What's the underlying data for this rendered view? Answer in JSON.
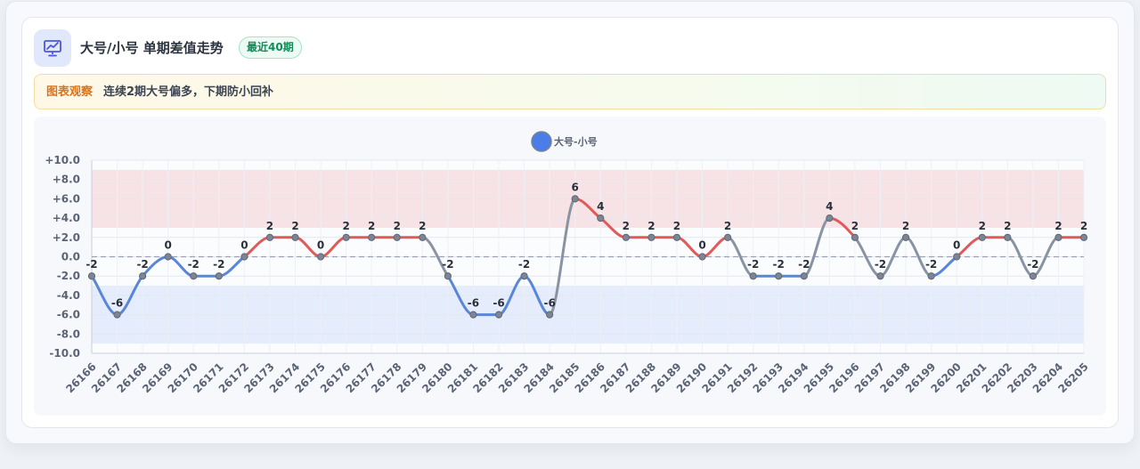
{
  "header": {
    "title": "大号/小号 单期差值走势",
    "badge": "最近40期",
    "icon": "chart-presentation-icon"
  },
  "notice": {
    "label": "图表观察",
    "text": "连续2期大号偏多，下期防小回补"
  },
  "colors": {
    "positive": "#e05a5a",
    "negative": "#5a86d8",
    "neutral": "#8893a3",
    "legend_dot": "#4a7de8",
    "high_band": "#f7e3e6",
    "low_band": "#e5ecfb"
  },
  "chart_data": {
    "type": "line",
    "legend": [
      "大号-小号"
    ],
    "x": [
      "26166",
      "26167",
      "26168",
      "26169",
      "26170",
      "26171",
      "26172",
      "26173",
      "26174",
      "26175",
      "26176",
      "26177",
      "26178",
      "26179",
      "26180",
      "26181",
      "26182",
      "26183",
      "26184",
      "26185",
      "26186",
      "26187",
      "26188",
      "26189",
      "26190",
      "26191",
      "26192",
      "26193",
      "26194",
      "26195",
      "26196",
      "26197",
      "26198",
      "26199",
      "26200",
      "26201",
      "26202",
      "26203",
      "26204",
      "26205"
    ],
    "series": [
      {
        "name": "大号-小号",
        "values": [
          -2,
          -6,
          -2,
          0,
          -2,
          -2,
          0,
          2,
          2,
          0,
          2,
          2,
          2,
          2,
          -2,
          -6,
          -6,
          -2,
          -6,
          6,
          4,
          2,
          2,
          2,
          0,
          2,
          -2,
          -2,
          -2,
          4,
          2,
          -2,
          2,
          -2,
          0,
          2,
          2,
          -2,
          2,
          2
        ]
      }
    ],
    "ylim": [
      -10,
      10
    ],
    "yticks": [
      "+10.0",
      "+8.0",
      "+6.0",
      "+4.0",
      "+2.0",
      "0.0",
      "-2.0",
      "-4.0",
      "-6.0",
      "-8.0",
      "-10.0"
    ],
    "ytick_values": [
      10,
      8,
      6,
      4,
      2,
      0,
      -2,
      -4,
      -6,
      -8,
      -10
    ],
    "bands": [
      {
        "from": 3,
        "to": 9,
        "color": "#f7e3e6"
      },
      {
        "from": -9,
        "to": -3,
        "color": "#e5ecfb"
      }
    ],
    "reference_line": 0,
    "grid": true,
    "legend_position": "top-center"
  }
}
